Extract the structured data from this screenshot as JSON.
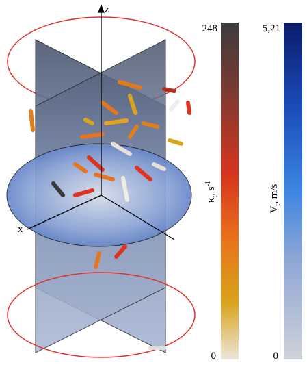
{
  "scene": {
    "axis_z": "z",
    "axis_x": "x"
  },
  "colorbars": [
    {
      "symbol": "κ",
      "subscript": "t",
      "unit": ", s",
      "exponent": "-1",
      "max": "248",
      "min": "0"
    },
    {
      "symbol": "V",
      "subscript": "t",
      "unit": ", m/s",
      "max": "5,21",
      "min": "0"
    }
  ]
}
